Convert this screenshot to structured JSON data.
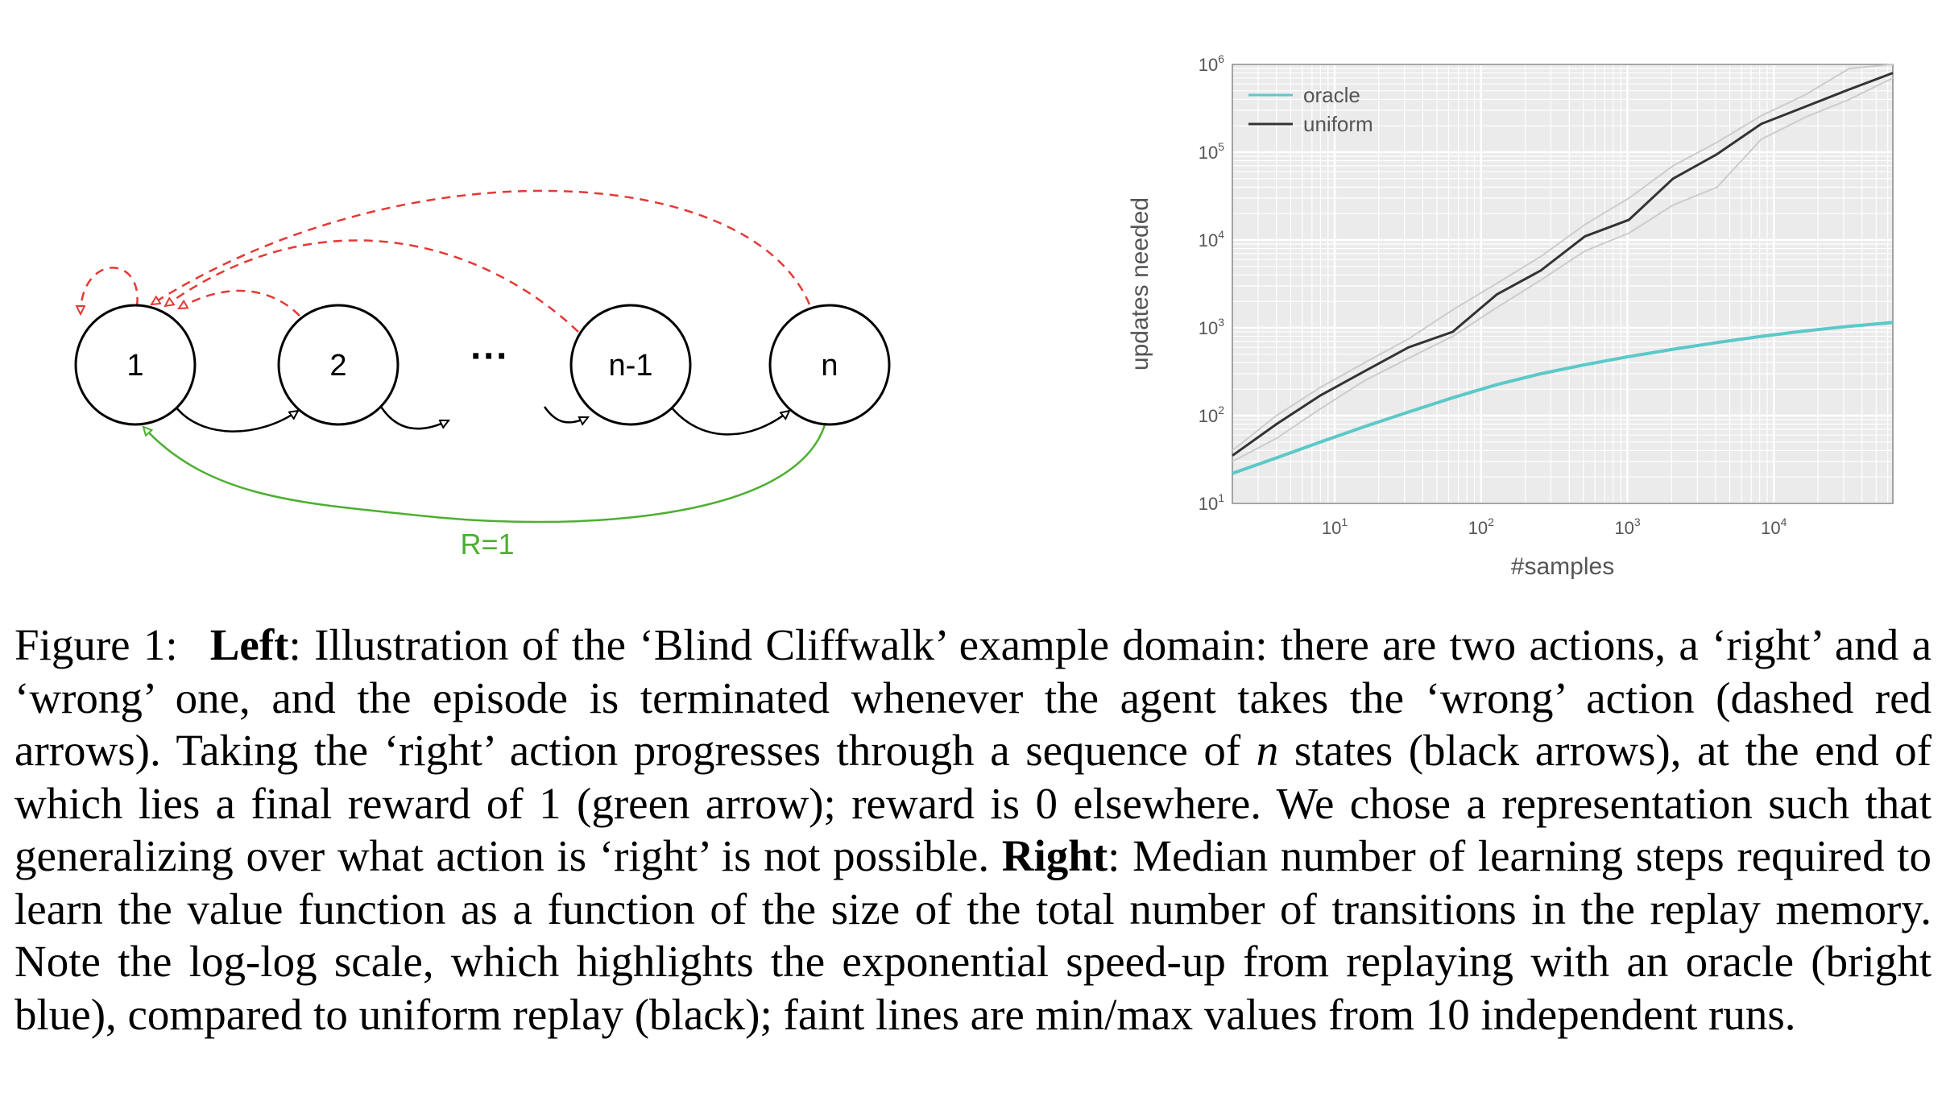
{
  "diagram": {
    "nodes": [
      {
        "id": "s1",
        "label": "1"
      },
      {
        "id": "s2",
        "label": "2"
      },
      {
        "id": "sn1",
        "label": "n-1"
      },
      {
        "id": "sn",
        "label": "n"
      }
    ],
    "ellipsis": "···",
    "reward_label": "R=1",
    "colors": {
      "wrong_action": "#e53935",
      "right_action": "#000000",
      "reward": "#4caf30"
    }
  },
  "chart_data": {
    "type": "line",
    "xlabel": "#samples",
    "ylabel": "updates needed",
    "x_scale": "log",
    "y_scale": "log",
    "xlim": [
      2,
      65000
    ],
    "ylim": [
      10,
      1000000
    ],
    "x_ticks": [
      {
        "value": 10,
        "base": "10",
        "exp": "1"
      },
      {
        "value": 100,
        "base": "10",
        "exp": "2"
      },
      {
        "value": 1000,
        "base": "10",
        "exp": "3"
      },
      {
        "value": 10000,
        "base": "10",
        "exp": "4"
      }
    ],
    "y_ticks": [
      {
        "value": 10,
        "base": "10",
        "exp": "1"
      },
      {
        "value": 100,
        "base": "10",
        "exp": "2"
      },
      {
        "value": 1000,
        "base": "10",
        "exp": "3"
      },
      {
        "value": 10000,
        "base": "10",
        "exp": "4"
      },
      {
        "value": 100000,
        "base": "10",
        "exp": "5"
      },
      {
        "value": 1000000,
        "base": "10",
        "exp": "6"
      }
    ],
    "legend_position": "top-left",
    "grid": true,
    "series": [
      {
        "name": "oracle",
        "color": "#5cc8c8",
        "x": [
          2,
          4,
          8,
          16,
          32,
          64,
          128,
          256,
          512,
          1024,
          2048,
          4096,
          8192,
          16384,
          32768,
          65536
        ],
        "y": [
          22,
          33,
          50,
          75,
          110,
          160,
          225,
          300,
          380,
          470,
          570,
          680,
          800,
          920,
          1040,
          1150
        ]
      },
      {
        "name": "uniform",
        "color": "#333333",
        "x": [
          2,
          4,
          8,
          16,
          32,
          64,
          128,
          256,
          512,
          1024,
          2048,
          4096,
          8192,
          16384,
          32768,
          65536
        ],
        "y": [
          35,
          80,
          170,
          320,
          600,
          900,
          2400,
          4500,
          11000,
          17000,
          50000,
          95000,
          210000,
          330000,
          520000,
          800000
        ]
      },
      {
        "name": "",
        "role": "min",
        "color": "#cccccc",
        "x": [
          2,
          4,
          8,
          16,
          32,
          64,
          128,
          256,
          512,
          1024,
          2048,
          4096,
          8192,
          16384,
          32768,
          65536
        ],
        "y": [
          30,
          55,
          120,
          250,
          450,
          800,
          1700,
          3500,
          7500,
          12000,
          25000,
          40000,
          140000,
          250000,
          400000,
          700000
        ]
      },
      {
        "name": "",
        "role": "max",
        "color": "#cccccc",
        "x": [
          2,
          4,
          8,
          16,
          32,
          64,
          128,
          256,
          512,
          1024,
          2048,
          4096,
          8192,
          16384,
          32768,
          65536
        ],
        "y": [
          40,
          100,
          210,
          400,
          750,
          1600,
          3200,
          6500,
          15000,
          30000,
          70000,
          130000,
          260000,
          450000,
          900000,
          1500000
        ]
      }
    ]
  },
  "caption": {
    "prefix": "Figure 1:",
    "left_label": "Left",
    "left_text": ": Illustration of the ‘Blind Cliffwalk’ example domain: there are two actions, a ‘right’ and a ‘wrong’ one, and the episode is terminated whenever the agent takes the ‘wrong’ action (dashed red arrows). Taking the ‘right’ action progresses through a sequence of ",
    "n_symbol": "n",
    "left_text_2": " states (black arrows), at the end of which lies a final reward of 1 (green arrow); reward is 0 elsewhere. We chose a representation such that generalizing over what action is ‘right’ is not possible. ",
    "right_label": "Right",
    "right_text": ": Median number of learning steps required to learn the value function as a function of the size of the total number of transitions in the replay memory. Note the log-log scale, which highlights the exponential speed-up from replaying with an oracle (bright blue), compared to uniform replay (black); faint lines are min/max values from 10 independent runs."
  }
}
